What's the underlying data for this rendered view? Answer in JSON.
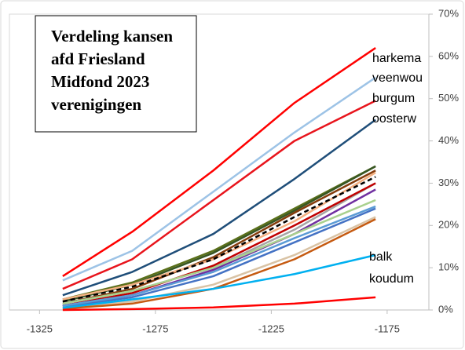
{
  "chart_data": {
    "type": "line",
    "title": [
      "Verdeling kansen",
      "afd Friesland",
      "Midfond 2023",
      "verenigingen"
    ],
    "x": [
      -1315,
      -1285,
      -1250,
      -1215,
      -1180
    ],
    "xlim": [
      -1338,
      -1157
    ],
    "xticks": [
      -1325,
      -1275,
      -1225,
      -1175
    ],
    "ylim": [
      0,
      70
    ],
    "yticks": [
      {
        "value": 0,
        "label": "0%"
      },
      {
        "value": 10,
        "label": "10%"
      },
      {
        "value": 20,
        "label": "20%"
      },
      {
        "value": 30,
        "label": "30%"
      },
      {
        "value": 40,
        "label": "40%"
      },
      {
        "value": 50,
        "label": "50%"
      },
      {
        "value": 60,
        "label": "60%"
      },
      {
        "value": 70,
        "label": "70%"
      }
    ],
    "series": [
      {
        "name": "harkema",
        "color": "#ff0000",
        "values": [
          8,
          18.5,
          33,
          49,
          62
        ]
      },
      {
        "name": "veenwou",
        "color": "#9dc3e6",
        "values": [
          7,
          14,
          28,
          42,
          55
        ]
      },
      {
        "name": "burgum",
        "color": "#e8141c",
        "values": [
          5,
          12,
          26,
          40,
          49.5
        ]
      },
      {
        "name": "oosterw",
        "color": "#1f4e79",
        "values": [
          3.5,
          9,
          18,
          31,
          45
        ]
      },
      {
        "color": "#5a6f1a",
        "values": [
          2.5,
          6.5,
          14,
          24,
          34
        ]
      },
      {
        "color": "#375623",
        "values": [
          2,
          6,
          13.5,
          23.5,
          34
        ]
      },
      {
        "color": "#843c0c",
        "values": [
          1.5,
          5,
          12.5,
          23,
          33
        ]
      },
      {
        "color": "#f4b183",
        "values": [
          2.5,
          6,
          12,
          21,
          32.5
        ]
      },
      {
        "color": "#000000",
        "dashed": true,
        "values": [
          2,
          5.5,
          12,
          22,
          31.5
        ]
      },
      {
        "color": "#a5a5a5",
        "values": [
          1.5,
          4.5,
          10,
          19,
          30
        ]
      },
      {
        "color": "#c00000",
        "values": [
          1,
          4,
          10.5,
          20,
          30
        ]
      },
      {
        "color": "#7030a0",
        "values": [
          1,
          3.5,
          9.5,
          18,
          28.5
        ]
      },
      {
        "color": "#a9d18e",
        "values": [
          1.5,
          4.5,
          10,
          18,
          26
        ]
      },
      {
        "color": "#4472c4",
        "values": [
          0.8,
          3,
          8,
          16,
          24
        ]
      },
      {
        "color": "#5b9bd5",
        "values": [
          1,
          3.5,
          9,
          17,
          24.5
        ]
      },
      {
        "color": "#d9c3a5",
        "values": [
          0.5,
          2,
          6,
          13,
          22
        ]
      },
      {
        "color": "#c55a11",
        "values": [
          0.3,
          1.5,
          5,
          12,
          21.5
        ]
      },
      {
        "name": "balk",
        "color": "#00b0f0",
        "values": [
          0.5,
          2.5,
          5,
          8.5,
          13
        ]
      },
      {
        "name": "koudum",
        "color": "#ff0000",
        "values": [
          0,
          0.2,
          0.6,
          1.5,
          3
        ]
      }
    ]
  }
}
